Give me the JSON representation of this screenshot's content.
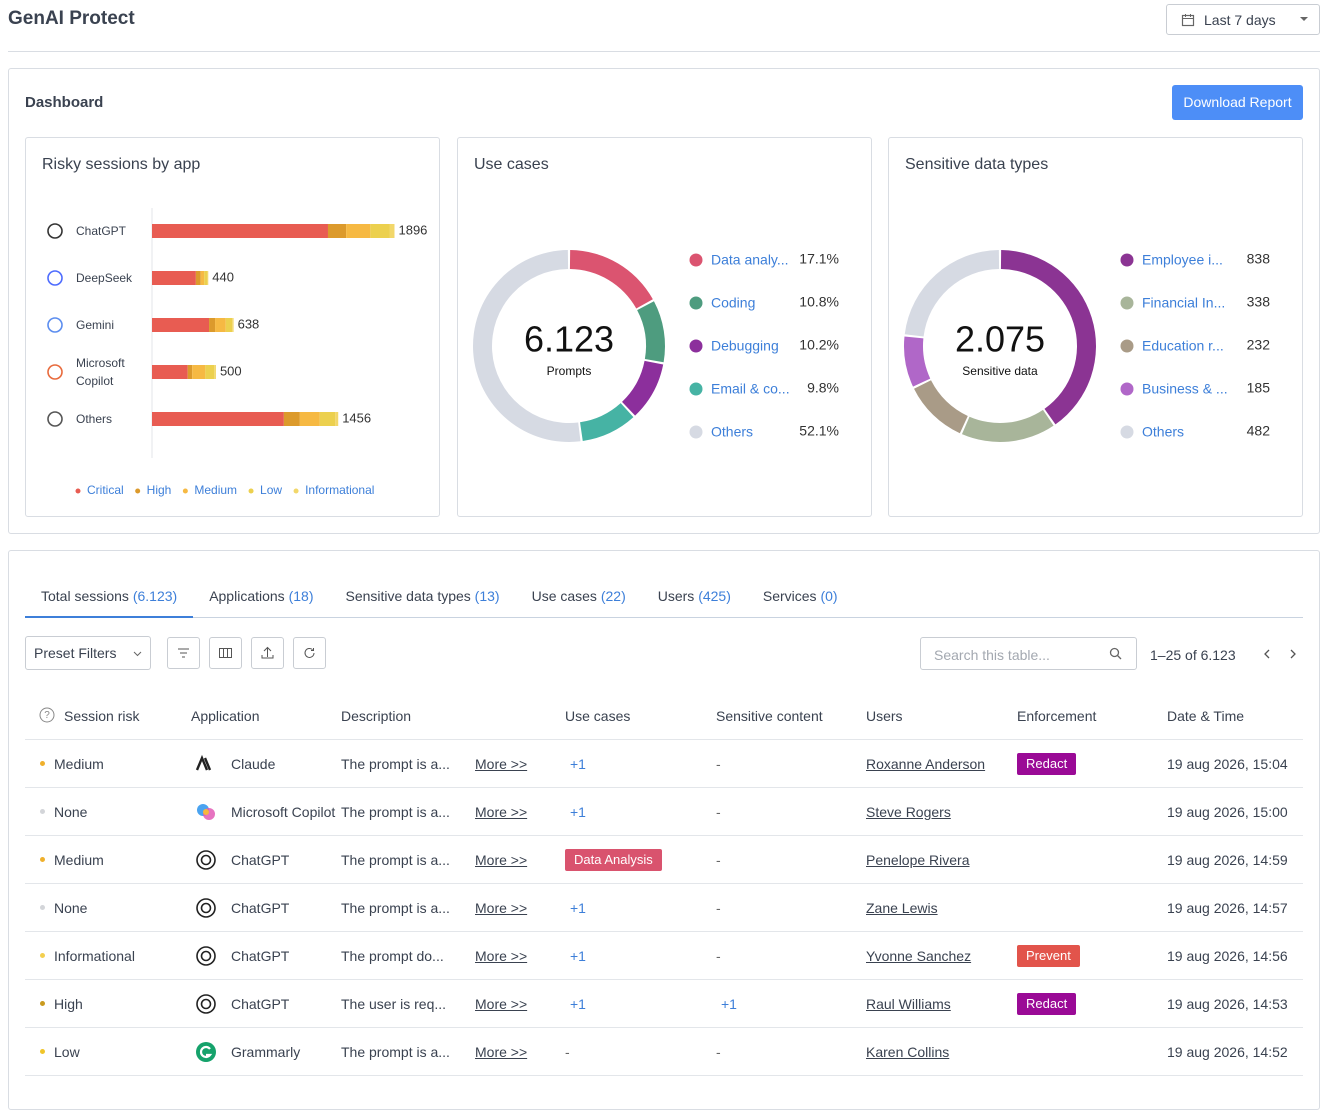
{
  "header": {
    "title": "GenAI Protect",
    "date_range": "Last 7 days"
  },
  "dashboard": {
    "title": "Dashboard",
    "button": "Download Report"
  },
  "chart_data": [
    {
      "type": "bar",
      "orientation": "horizontal",
      "stacked": true,
      "title": "Risky sessions by app",
      "categories": [
        "ChatGPT",
        "DeepSeek",
        "Gemini",
        "Microsoft Copilot",
        "Others"
      ],
      "totals": [
        1896,
        440,
        638,
        500,
        1456
      ],
      "xlim": [
        0,
        1900
      ],
      "series": [
        {
          "name": "Critical",
          "color": "#e85c52",
          "values": [
            1376,
            343,
            446,
            279,
            1031
          ]
        },
        {
          "name": "High",
          "color": "#dc9a2c",
          "values": [
            142,
            38,
            47,
            35,
            125
          ]
        },
        {
          "name": "Medium",
          "color": "#f6b943",
          "values": [
            189,
            27,
            84,
            103,
            156
          ]
        },
        {
          "name": "Low",
          "color": "#ecd04e",
          "values": [
            150,
            25,
            50,
            70,
            120
          ]
        },
        {
          "name": "Informational",
          "color": "#f2d76a",
          "values": [
            39,
            7,
            11,
            13,
            24
          ]
        }
      ]
    },
    {
      "type": "donut",
      "title": "Use cases",
      "center_value": "6.123",
      "center_label": "Prompts",
      "categories": [
        "Data analy...",
        "Coding",
        "Debugging",
        "Email & co...",
        "Others"
      ],
      "values": [
        17.1,
        10.8,
        10.2,
        9.8,
        52.1
      ],
      "value_labels": [
        "17.1%",
        "10.8%",
        "10.2%",
        "9.8%",
        "52.1%"
      ],
      "colors": [
        "#db5470",
        "#4e9c7f",
        "#8c2f9c",
        "#46b3a4",
        "#d6dae3"
      ]
    },
    {
      "type": "donut",
      "title": "Sensitive data types",
      "center_value": "2.075",
      "center_label": "Sensitive data",
      "categories": [
        "Employee i...",
        "Financial In...",
        "Education r...",
        "Business & ...",
        "Others"
      ],
      "values": [
        838,
        338,
        232,
        185,
        482
      ],
      "colors": [
        "#8b3493",
        "#a8b59a",
        "#a99b87",
        "#b067c8",
        "#d6dae3"
      ]
    }
  ],
  "tabs": [
    {
      "name": "Total sessions",
      "count": "(6.123)"
    },
    {
      "name": "Applications",
      "count": "(18)"
    },
    {
      "name": "Sensitive data types",
      "count": "(13)"
    },
    {
      "name": "Use cases",
      "count": "(22)"
    },
    {
      "name": "Users",
      "count": "(425)"
    },
    {
      "name": "Services",
      "count": "(0)"
    }
  ],
  "toolbar": {
    "preset": "Preset Filters",
    "search_placeholder": "Search this table...",
    "pagination": "1–25 of 6.123"
  },
  "table": {
    "columns": [
      "Session risk",
      "Application",
      "Description",
      "Use cases",
      "Sensitive content",
      "Users",
      "Enforcement",
      "Date & Time"
    ],
    "rows": [
      {
        "risk": "Medium",
        "risk_color": "#efb02c",
        "application": "Claude",
        "description": "The prompt is a...",
        "more": "More >>",
        "use_cases": "+1",
        "sensitive": "-",
        "user": "Roxanne Anderson",
        "enforcement": {
          "label": "Redact",
          "color": "#9a0a96"
        },
        "date": "19 aug 2026, 15:04"
      },
      {
        "risk": "None",
        "risk_color": "#d3d5d9",
        "application": "Microsoft Copilot",
        "description": "The prompt is a...",
        "more": "More >>",
        "use_cases": "+1",
        "sensitive": "-",
        "user": "Steve Rogers",
        "enforcement": null,
        "date": "19 aug 2026, 15:00"
      },
      {
        "risk": "Medium",
        "risk_color": "#efb02c",
        "application": "ChatGPT",
        "description": "The prompt is a...",
        "more": "More >>",
        "use_cases": {
          "label": "Data Analysis",
          "color": "#d9536e"
        },
        "sensitive": "-",
        "user": "Penelope Rivera",
        "enforcement": null,
        "date": "19 aug 2026, 14:59"
      },
      {
        "risk": "None",
        "risk_color": "#d3d5d9",
        "application": "ChatGPT",
        "description": "The prompt is a...",
        "more": "More >>",
        "use_cases": "+1",
        "sensitive": "-",
        "user": "Zane Lewis",
        "enforcement": null,
        "date": "19 aug 2026, 14:57"
      },
      {
        "risk": "Informational",
        "risk_color": "#f3cf4f",
        "application": "ChatGPT",
        "description": "The prompt do...",
        "more": "More >>",
        "use_cases": "+1",
        "sensitive": "-",
        "user": "Yvonne Sanchez",
        "enforcement": {
          "label": "Prevent",
          "color": "#e2544b"
        },
        "date": "19 aug 2026, 14:56"
      },
      {
        "risk": "High",
        "risk_color": "#c99a1f",
        "application": "ChatGPT",
        "description": "The user is req...",
        "more": "More >>",
        "use_cases": "+1",
        "sensitive": "+1",
        "user": "Raul Williams",
        "enforcement": {
          "label": "Redact",
          "color": "#9a0a96"
        },
        "date": "19 aug 2026, 14:53"
      },
      {
        "risk": "Low",
        "risk_color": "#f0c52a",
        "application": "Grammarly",
        "description": "The prompt is a...",
        "more": "More >>",
        "use_cases": "-",
        "sensitive": "-",
        "user": "Karen Collins",
        "enforcement": null,
        "date": "19 aug 2026, 14:52"
      }
    ]
  }
}
